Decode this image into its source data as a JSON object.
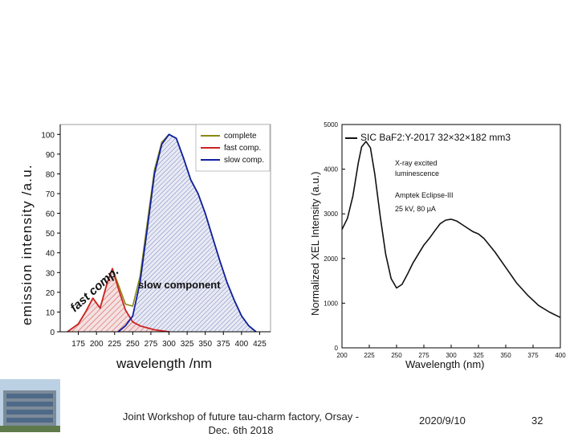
{
  "footer": {
    "event": "Joint Workshop of future tau-charm factory, Orsay - Dec. 6th 2018",
    "date": "2020/9/10",
    "page": "32"
  },
  "chart_data": [
    {
      "type": "area",
      "title": "",
      "xlabel": "wavelength /nm",
      "ylabel": "emission intensity /a.u.",
      "xlim": [
        150,
        440
      ],
      "ylim": [
        0,
        105
      ],
      "xticks": [
        175,
        200,
        225,
        250,
        275,
        300,
        325,
        350,
        375,
        400,
        425
      ],
      "yticks": [
        0,
        10,
        20,
        30,
        40,
        50,
        60,
        70,
        80,
        90,
        100
      ],
      "grid": false,
      "legend_position": "top-right",
      "annotations": [
        "fast comp.",
        "slow component"
      ],
      "series": [
        {
          "name": "complete",
          "color": "#8a8a10",
          "x": [
            160,
            175,
            185,
            195,
            205,
            215,
            222,
            230,
            240,
            250,
            260,
            270,
            280,
            290,
            300,
            310,
            320,
            330,
            340,
            350,
            360,
            370,
            380,
            390,
            400,
            410,
            420
          ],
          "y": [
            0,
            4,
            10,
            17,
            12,
            25,
            32,
            24,
            14,
            13,
            28,
            55,
            82,
            96,
            100,
            98,
            88,
            77,
            70,
            60,
            48,
            36,
            25,
            16,
            8,
            3,
            0
          ]
        },
        {
          "name": "fast comp.",
          "color": "#cc2222",
          "x": [
            160,
            175,
            185,
            195,
            205,
            215,
            222,
            230,
            240,
            250,
            260,
            270,
            280,
            290,
            300
          ],
          "y": [
            0,
            4,
            10,
            17,
            12,
            25,
            32,
            22,
            11,
            5,
            3,
            2,
            1,
            0.5,
            0
          ]
        },
        {
          "name": "slow comp.",
          "color": "#1020a0",
          "x": [
            230,
            240,
            250,
            260,
            270,
            280,
            290,
            300,
            310,
            320,
            330,
            340,
            350,
            360,
            370,
            380,
            390,
            400,
            410,
            420
          ],
          "y": [
            0,
            3,
            8,
            25,
            52,
            80,
            95,
            100,
            98,
            88,
            77,
            70,
            60,
            48,
            36,
            25,
            16,
            8,
            3,
            0
          ]
        }
      ]
    },
    {
      "type": "line",
      "title": "SIC BaF2:Y-2017 32×32×182 mm3",
      "xlabel": "Wavelength (nm)",
      "ylabel": "Normalized XEL Intensity (a.u.)",
      "xlim": [
        200,
        400
      ],
      "ylim": [
        0,
        5000
      ],
      "xticks": [
        200,
        225,
        250,
        275,
        300,
        325,
        350,
        375,
        400
      ],
      "yticks": [
        0,
        1000,
        2000,
        3000,
        4000,
        5000
      ],
      "grid": false,
      "legend_position": "top-left",
      "annotations": [
        "X-ray excited",
        "luminescence",
        "Amptek Eclipse-III",
        "25 kV, 80 μA"
      ],
      "series": [
        {
          "name": "SIC BaF2:Y-2017 32×32×182 mm3",
          "color": "#111111",
          "x": [
            200,
            205,
            210,
            215,
            218,
            222,
            226,
            230,
            235,
            240,
            245,
            250,
            255,
            260,
            265,
            270,
            275,
            280,
            285,
            290,
            295,
            300,
            305,
            310,
            315,
            320,
            325,
            330,
            340,
            350,
            360,
            370,
            380,
            390,
            400
          ],
          "y": [
            2650,
            2900,
            3400,
            4150,
            4500,
            4620,
            4480,
            3900,
            2950,
            2100,
            1550,
            1340,
            1420,
            1650,
            1900,
            2100,
            2300,
            2450,
            2620,
            2780,
            2860,
            2880,
            2840,
            2760,
            2680,
            2600,
            2550,
            2450,
            2150,
            1800,
            1450,
            1180,
            950,
            800,
            680
          ]
        }
      ]
    }
  ]
}
